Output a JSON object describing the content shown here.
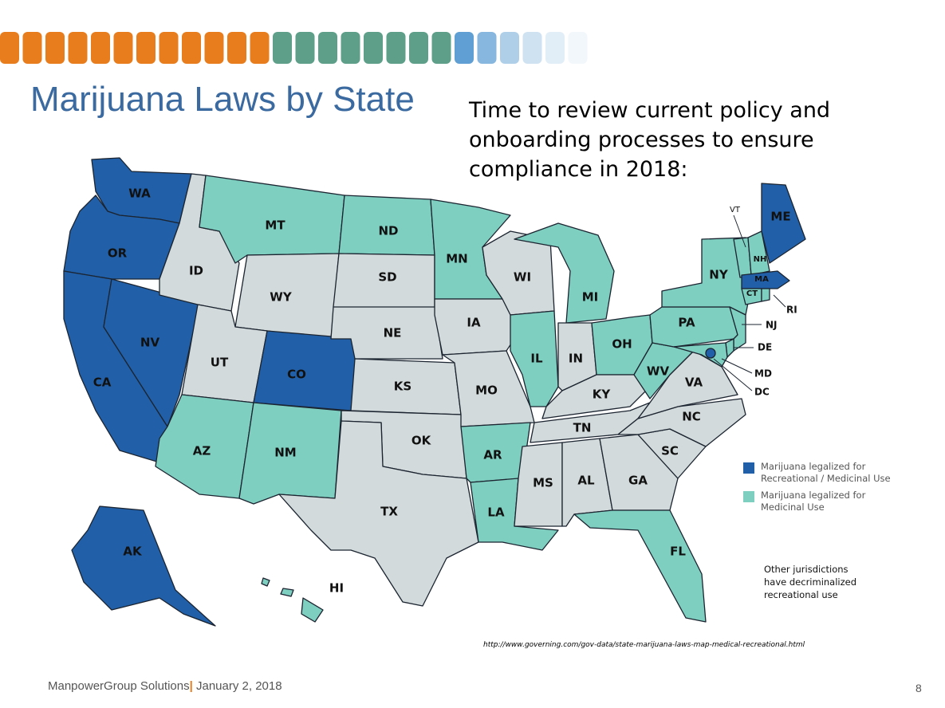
{
  "title": "Marijuana Laws by State",
  "subtitle": "Time to review current policy and onboarding processes to ensure compliance in 2018:",
  "colors": {
    "recreational": "#2160a8",
    "medicinal": "#7fcfc1",
    "none": "#d3dadb",
    "border": "#1b2430",
    "bar_orange": "#e87d1e",
    "bar_green": "#5e9f8a",
    "bar_blue": "#5f9fd3"
  },
  "states": [
    {
      "code": "WA",
      "status": "recreational"
    },
    {
      "code": "OR",
      "status": "recreational"
    },
    {
      "code": "CA",
      "status": "recreational"
    },
    {
      "code": "NV",
      "status": "recreational"
    },
    {
      "code": "CO",
      "status": "recreational"
    },
    {
      "code": "AK",
      "status": "recreational"
    },
    {
      "code": "ME",
      "status": "recreational"
    },
    {
      "code": "MA",
      "status": "recreational"
    },
    {
      "code": "DC",
      "status": "recreational"
    },
    {
      "code": "MT",
      "status": "medicinal"
    },
    {
      "code": "ND",
      "status": "medicinal"
    },
    {
      "code": "MN",
      "status": "medicinal"
    },
    {
      "code": "MI",
      "status": "medicinal"
    },
    {
      "code": "IL",
      "status": "medicinal"
    },
    {
      "code": "OH",
      "status": "medicinal"
    },
    {
      "code": "PA",
      "status": "medicinal"
    },
    {
      "code": "NY",
      "status": "medicinal"
    },
    {
      "code": "VT",
      "status": "medicinal"
    },
    {
      "code": "NH",
      "status": "medicinal"
    },
    {
      "code": "CT",
      "status": "medicinal"
    },
    {
      "code": "RI",
      "status": "medicinal"
    },
    {
      "code": "NJ",
      "status": "medicinal"
    },
    {
      "code": "DE",
      "status": "medicinal"
    },
    {
      "code": "MD",
      "status": "medicinal"
    },
    {
      "code": "WV",
      "status": "medicinal"
    },
    {
      "code": "AZ",
      "status": "medicinal"
    },
    {
      "code": "NM",
      "status": "medicinal"
    },
    {
      "code": "AR",
      "status": "medicinal"
    },
    {
      "code": "LA",
      "status": "medicinal"
    },
    {
      "code": "FL",
      "status": "medicinal"
    },
    {
      "code": "HI",
      "status": "medicinal"
    },
    {
      "code": "ID",
      "status": "none"
    },
    {
      "code": "WY",
      "status": "none"
    },
    {
      "code": "UT",
      "status": "none"
    },
    {
      "code": "SD",
      "status": "none"
    },
    {
      "code": "NE",
      "status": "none"
    },
    {
      "code": "KS",
      "status": "none"
    },
    {
      "code": "OK",
      "status": "none"
    },
    {
      "code": "TX",
      "status": "none"
    },
    {
      "code": "IA",
      "status": "none"
    },
    {
      "code": "MO",
      "status": "none"
    },
    {
      "code": "WI",
      "status": "none"
    },
    {
      "code": "IN",
      "status": "none"
    },
    {
      "code": "KY",
      "status": "none"
    },
    {
      "code": "TN",
      "status": "none"
    },
    {
      "code": "MS",
      "status": "none"
    },
    {
      "code": "AL",
      "status": "none"
    },
    {
      "code": "GA",
      "status": "none"
    },
    {
      "code": "SC",
      "status": "none"
    },
    {
      "code": "NC",
      "status": "none"
    },
    {
      "code": "VA",
      "status": "none"
    }
  ],
  "legend": [
    {
      "status": "recreational",
      "label": "Marijuana legalized for\nRecreational / Medicinal Use"
    },
    {
      "status": "medicinal",
      "label": "Marijuana legalized for\nMedicinal Use"
    }
  ],
  "note": "Other jurisdictions\nhave decriminalized\nrecreational use",
  "source": "http://www.governing.com/gov-data/state-marijuana-laws-map-medical-recreational.html",
  "footer": {
    "company": "ManpowerGroup Solutions",
    "separator": "|",
    "date": "January 2, 2018"
  },
  "page_number": "8"
}
